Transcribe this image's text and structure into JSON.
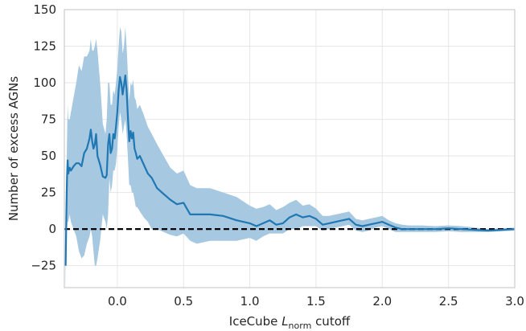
{
  "chart_data": {
    "type": "line",
    "title": "",
    "xlabel_prefix": "IceCube ",
    "xlabel_symbol": "L",
    "xlabel_subscript": "norm",
    "xlabel_suffix": " cutoff",
    "ylabel": "Number of excess AGNs",
    "xlim": [
      -0.4,
      3.0
    ],
    "ylim": [
      -40,
      150
    ],
    "xticks": [
      0.0,
      0.5,
      1.0,
      1.5,
      2.0,
      2.5,
      3.0
    ],
    "xtick_labels": [
      "0.0",
      "0.5",
      "1.0",
      "1.5",
      "2.0",
      "2.5",
      "3.0"
    ],
    "yticks": [
      -25,
      0,
      25,
      50,
      75,
      100,
      125,
      150
    ],
    "ytick_labels": [
      "−25",
      "0",
      "25",
      "50",
      "75",
      "100",
      "125",
      "150"
    ],
    "grid": true,
    "reference_line": {
      "y": 0,
      "style": "dashed",
      "color": "#000000"
    },
    "colors": {
      "line": "#1f77b4",
      "band": "#a6c8e0"
    },
    "series": [
      {
        "x": [
          -0.39,
          -0.385,
          -0.38,
          -0.375,
          -0.37,
          -0.36,
          -0.35,
          -0.33,
          -0.31,
          -0.29,
          -0.27,
          -0.25,
          -0.23,
          -0.21,
          -0.2,
          -0.19,
          -0.18,
          -0.17,
          -0.16,
          -0.15,
          -0.13,
          -0.11,
          -0.09,
          -0.08,
          -0.07,
          -0.06,
          -0.05,
          -0.04,
          -0.03,
          -0.02,
          -0.01,
          0.0,
          0.01,
          0.02,
          0.03,
          0.04,
          0.05,
          0.06,
          0.07,
          0.08,
          0.09,
          0.1,
          0.11,
          0.12,
          0.13,
          0.14,
          0.15,
          0.17,
          0.2,
          0.23,
          0.26,
          0.3,
          0.35,
          0.4,
          0.45,
          0.5,
          0.55,
          0.6,
          0.7,
          0.8,
          0.9,
          1.0,
          1.05,
          1.1,
          1.15,
          1.2,
          1.25,
          1.3,
          1.35,
          1.4,
          1.45,
          1.5,
          1.55,
          1.6,
          1.65,
          1.7,
          1.75,
          1.8,
          1.85,
          1.9,
          1.95,
          2.0,
          2.05,
          2.1,
          2.15,
          2.2,
          2.3,
          2.4,
          2.5,
          2.6,
          2.7,
          2.8,
          2.9,
          3.0
        ],
        "values": [
          -25,
          10,
          35,
          47,
          38,
          42,
          40,
          43,
          45,
          45,
          43,
          52,
          55,
          62,
          68,
          60,
          55,
          58,
          65,
          50,
          44,
          36,
          35,
          37,
          58,
          65,
          52,
          55,
          65,
          62,
          70,
          80,
          95,
          104,
          100,
          92,
          98,
          105,
          95,
          76,
          60,
          67,
          62,
          66,
          55,
          52,
          48,
          50,
          44,
          38,
          35,
          28,
          24,
          20,
          17,
          18,
          10,
          10,
          10,
          9,
          6,
          4,
          2,
          4,
          6,
          3,
          4,
          8,
          10,
          8,
          9,
          7,
          3,
          4,
          5,
          6,
          7,
          3,
          2,
          3,
          4,
          5,
          3,
          1,
          0,
          0,
          0,
          0,
          0.5,
          0,
          -0.5,
          -1,
          -0.5,
          0
        ],
        "lower": [
          -40,
          -5,
          0,
          5,
          5,
          10,
          5,
          0,
          -5,
          -15,
          -20,
          -18,
          -10,
          -5,
          0,
          -5,
          -15,
          -25,
          -25,
          -20,
          -8,
          10,
          5,
          0,
          10,
          35,
          25,
          30,
          40,
          40,
          45,
          55,
          70,
          80,
          75,
          65,
          70,
          75,
          65,
          48,
          30,
          30,
          25,
          25,
          20,
          15,
          15,
          12,
          8,
          5,
          0,
          0,
          -2,
          -4,
          -5,
          -3,
          -8,
          -10,
          -8,
          -8,
          -8,
          -6,
          -8,
          -5,
          -3,
          -3,
          -3,
          0,
          0,
          2,
          2,
          2,
          -1,
          0,
          1,
          2,
          3,
          -1,
          -2,
          -1,
          1,
          2,
          0,
          -2,
          -2,
          -2,
          -2,
          -2,
          -1.5,
          -2,
          -2,
          -2,
          -1.5,
          -1
        ],
        "upper": [
          -10,
          30,
          60,
          85,
          75,
          75,
          80,
          90,
          100,
          112,
          108,
          118,
          118,
          122,
          130,
          122,
          122,
          125,
          130,
          122,
          100,
          72,
          65,
          75,
          100,
          100,
          85,
          85,
          95,
          92,
          100,
          110,
          125,
          138,
          135,
          120,
          125,
          138,
          125,
          105,
          88,
          100,
          98,
          102,
          90,
          88,
          82,
          85,
          78,
          70,
          65,
          58,
          50,
          42,
          38,
          40,
          30,
          28,
          28,
          25,
          22,
          16,
          14,
          15,
          17,
          13,
          15,
          18,
          20,
          16,
          17,
          14,
          9,
          9,
          10,
          11,
          12,
          7,
          6,
          7,
          8,
          9,
          6,
          4,
          3,
          2.5,
          2.5,
          2,
          2.5,
          2,
          1,
          0,
          0.5,
          1
        ]
      }
    ]
  }
}
